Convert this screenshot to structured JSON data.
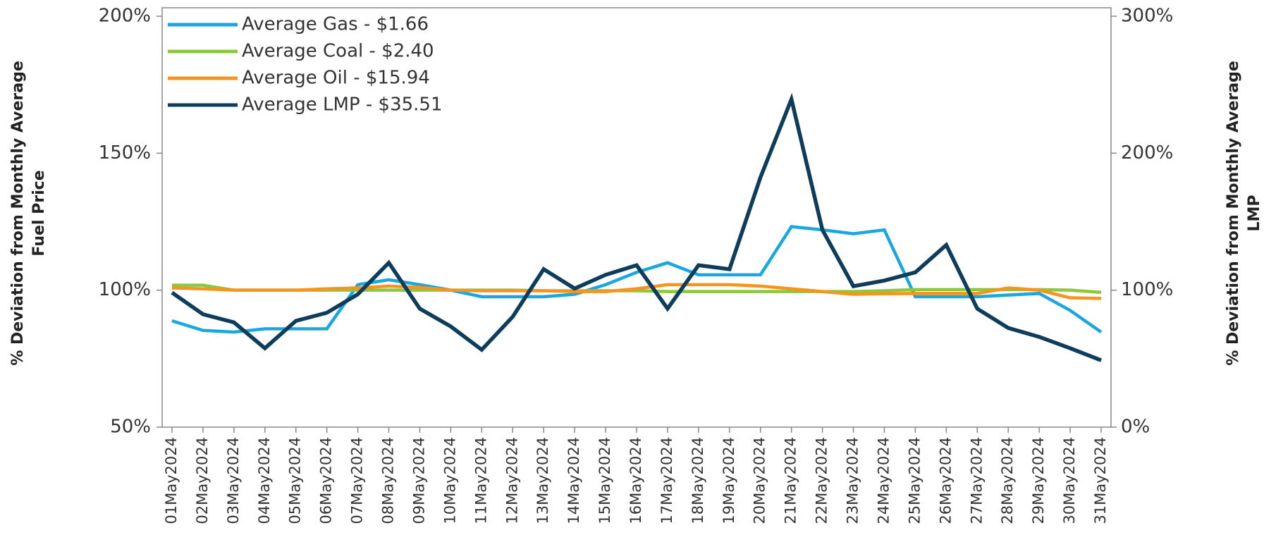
{
  "chart_data": {
    "type": "line",
    "ylabel": [
      "% Deviation from Monthly Average",
      "Fuel Price"
    ],
    "y2label": [
      "% Deviation from Monthly Average",
      "LMP"
    ],
    "categories": [
      "01May2024",
      "02May2024",
      "03May2024",
      "04May2024",
      "05May2024",
      "06May2024",
      "07May2024",
      "08May2024",
      "09May2024",
      "10May2024",
      "11May2024",
      "12May2024",
      "13May2024",
      "14May2024",
      "15May2024",
      "16May2024",
      "17May2024",
      "18May2024",
      "19May2024",
      "20May2024",
      "21May2024",
      "22May2024",
      "23May2024",
      "24May2024",
      "25May2024",
      "26May2024",
      "27May2024",
      "28May2024",
      "29May2024",
      "30May2024",
      "31May2024"
    ],
    "series": [
      {
        "name": "Average Gas - $1.66",
        "color": "#1aa7e0",
        "axis": "y",
        "values": [
          88.8,
          85.3,
          84.7,
          85.9,
          85.9,
          85.9,
          102,
          103.8,
          102,
          100,
          97.6,
          97.6,
          97.6,
          98.5,
          102,
          106.5,
          110,
          105.6,
          105.6,
          105.6,
          123.2,
          122,
          120.6,
          122,
          97.6,
          97.6,
          97.6,
          98.2,
          98.8,
          92.6,
          84.7
        ]
      },
      {
        "name": "Average Coal - $2.40",
        "color": "#8dc63f",
        "axis": "y",
        "values": [
          101.8,
          101.8,
          100,
          100,
          100,
          100,
          100,
          100,
          100,
          100,
          100,
          100,
          99.8,
          99.8,
          99.8,
          99.8,
          99.5,
          99.5,
          99.5,
          99.5,
          99.5,
          99.5,
          99.5,
          99.8,
          100.2,
          100.2,
          100.2,
          100.2,
          100.2,
          100,
          99.2
        ]
      },
      {
        "name": "Average Oil - $15.94",
        "color": "#f7941d",
        "axis": "y",
        "values": [
          100.8,
          100.5,
          100,
          100,
          100,
          100.5,
          100.8,
          101.5,
          101,
          100,
          99.8,
          99.8,
          99.8,
          99.5,
          99.5,
          100.5,
          102,
          102,
          102,
          101.5,
          100.5,
          99.5,
          98.5,
          98.7,
          98.8,
          98.8,
          98.8,
          100.8,
          100,
          97.2,
          97
        ]
      },
      {
        "name": "Average LMP - $35.51",
        "color": "#0d3d5a",
        "axis": "y2",
        "values": [
          98.2,
          82.4,
          76.5,
          57.6,
          77.6,
          83.5,
          97,
          120,
          86.5,
          73.5,
          56.5,
          80.6,
          115.3,
          101.2,
          111.2,
          118.2,
          86.5,
          118.2,
          115.3,
          182.4,
          239.4,
          144,
          102.9,
          107,
          113,
          133,
          86.5,
          72.4,
          65.9,
          57.6,
          48.8
        ]
      }
    ],
    "ylim": [
      50,
      200
    ],
    "yticks": [
      {
        "value": 50,
        "label": "50%"
      },
      {
        "value": 100,
        "label": "100%"
      },
      {
        "value": 150,
        "label": "150%"
      },
      {
        "value": 200,
        "label": "200%"
      }
    ],
    "y2lim": [
      0,
      300
    ],
    "y2ticks": [
      {
        "value": 0,
        "label": "0%"
      },
      {
        "value": 100,
        "label": "100%"
      },
      {
        "value": 200,
        "label": "200%"
      },
      {
        "value": 300,
        "label": "300%"
      }
    ],
    "legend": "upper left",
    "grid": false
  }
}
